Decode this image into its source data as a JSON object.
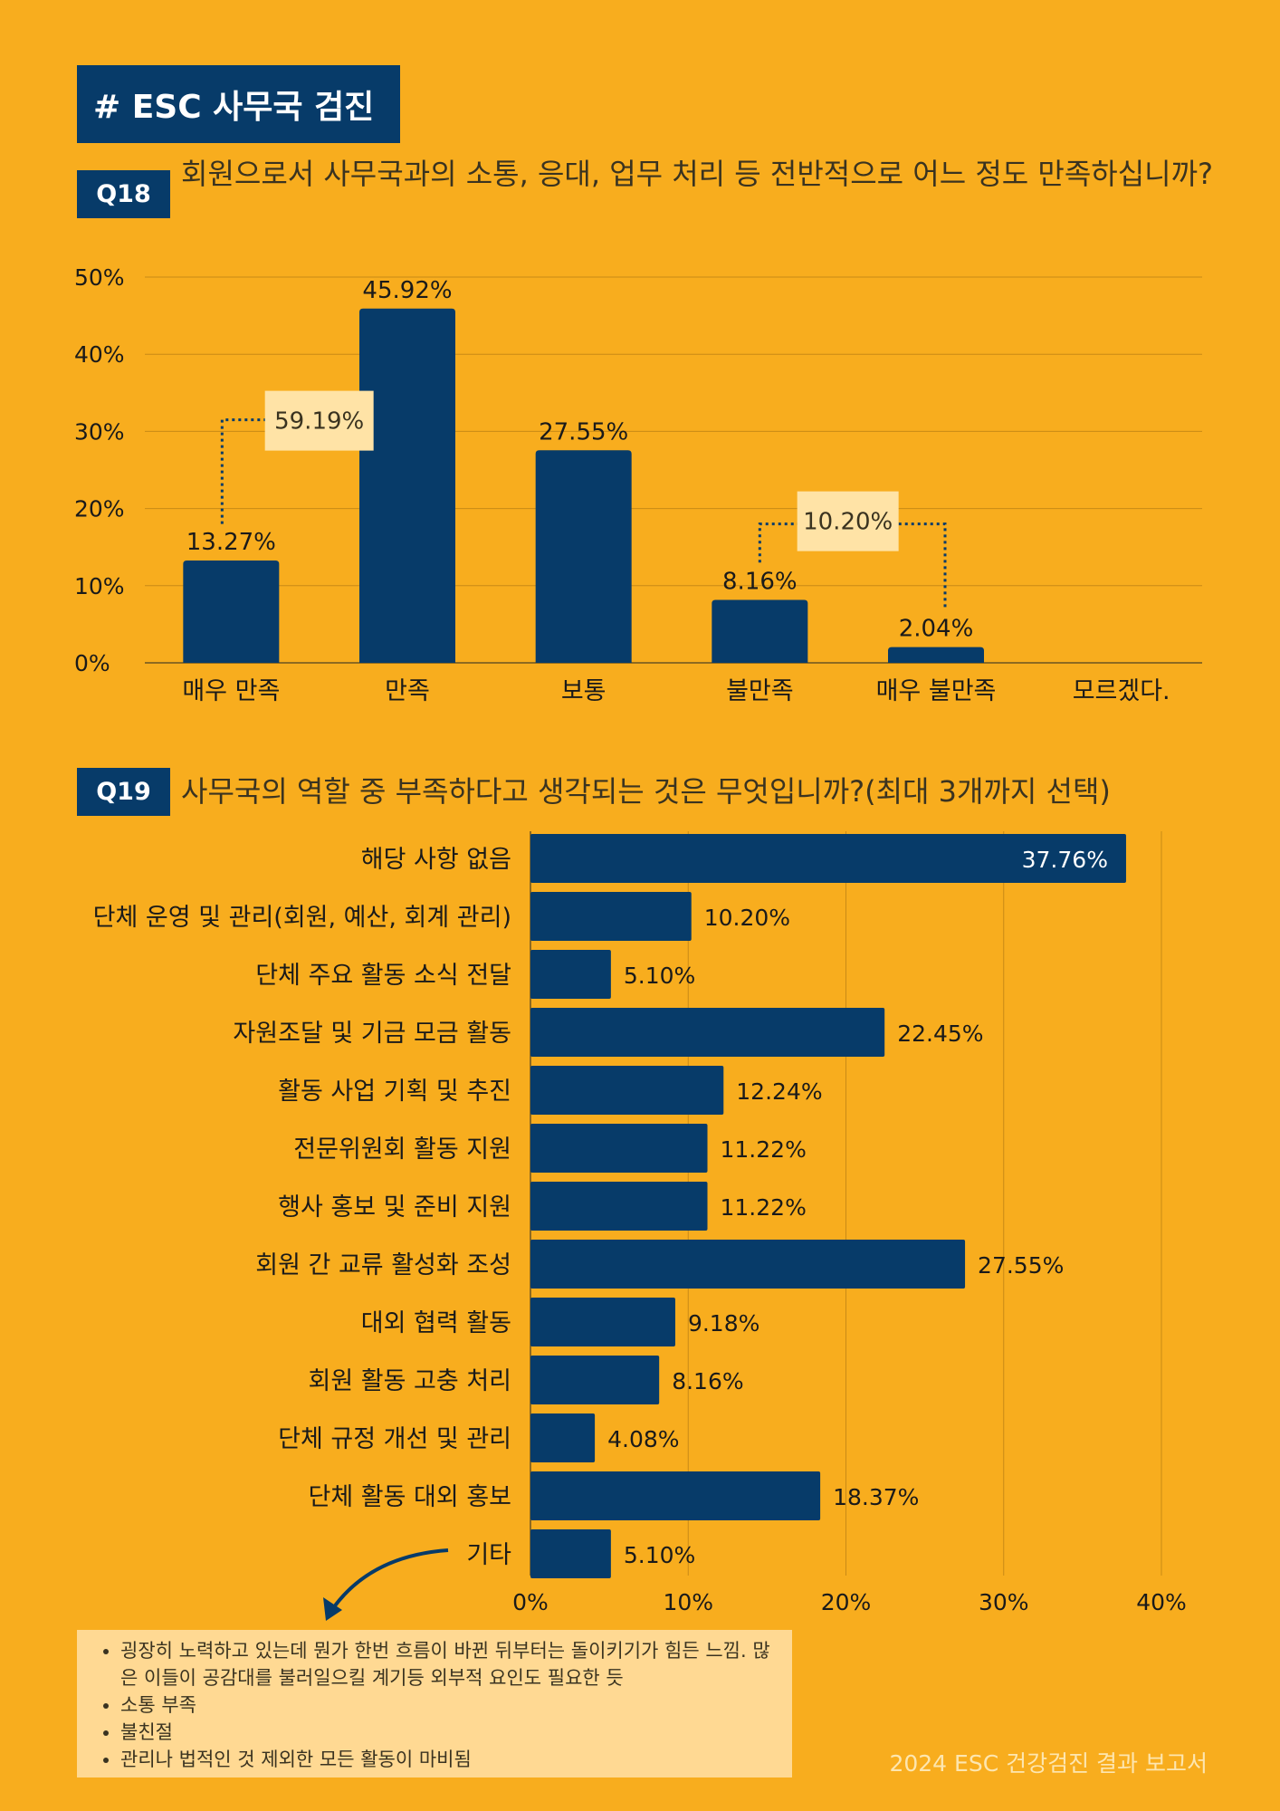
{
  "section_title": "# ESC 사무국 검진",
  "q18": {
    "badge": "Q18",
    "question": "회원으로서 사무국과의 소통, 응대, 업무 처리 등 전반적으로 어느 정도 만족하십니까?"
  },
  "q19": {
    "badge": "Q19",
    "question": "사무국의 역할 중 부족하다고 생각되는 것은 무엇입니까?(최대 3개까지 선택)"
  },
  "chart_data": [
    {
      "type": "bar",
      "categories": [
        "매우 만족",
        "만족",
        "보통",
        "불만족",
        "매우 불만족",
        "모르겠다."
      ],
      "values": [
        13.27,
        45.92,
        27.55,
        8.16,
        2.04,
        0
      ],
      "labels": [
        "13.27%",
        "45.92%",
        "27.55%",
        "8.16%",
        "2.04%",
        ""
      ],
      "ylim": [
        0,
        50
      ],
      "yticks": [
        "0%",
        "10%",
        "20%",
        "30%",
        "40%",
        "50%"
      ],
      "grid": true,
      "annotations": [
        {
          "text": "59.19%",
          "value": 59.19,
          "spans": [
            "매우 만족",
            "만족"
          ]
        },
        {
          "text": "10.20%",
          "value": 10.2,
          "spans": [
            "불만족",
            "매우 불만족"
          ]
        }
      ]
    },
    {
      "type": "bar",
      "orientation": "horizontal",
      "categories": [
        "해당 사항 없음",
        "단체 운영 및 관리(회원, 예산, 회계 관리)",
        "단체 주요 활동 소식 전달",
        "자원조달 및 기금 모금 활동",
        "활동 사업 기획 및 추진",
        "전문위원회 활동 지원",
        "행사 홍보 및 준비 지원",
        "회원 간 교류 활성화 조성",
        "대외 협력 활동",
        "회원 활동 고충 처리",
        "단체 규정 개선 및 관리",
        "단체 활동 대외 홍보",
        "기타"
      ],
      "values": [
        37.76,
        10.2,
        5.1,
        22.45,
        12.24,
        11.22,
        11.22,
        27.55,
        9.18,
        8.16,
        4.08,
        18.37,
        5.1
      ],
      "labels": [
        "37.76%",
        "10.20%",
        "5.10%",
        "22.45%",
        "12.24%",
        "11.22%",
        "11.22%",
        "27.55%",
        "9.18%",
        "8.16%",
        "4.08%",
        "18.37%",
        "5.10%"
      ],
      "xlim": [
        0,
        40
      ],
      "xticks": [
        "0%",
        "10%",
        "20%",
        "30%",
        "40%"
      ],
      "grid": true
    }
  ],
  "comments": [
    "굉장히 노력하고 있는데 뭔가 한번 흐름이 바뀐 뒤부터는 돌이키기가 힘든 느낌. 많은 이들이 공감대를 불러일으킬 계기등 외부적 요인도 필요한 듯",
    "소통 부족",
    "불친절",
    "관리나 법적인 것 제외한 모든 활동이 마비됨"
  ],
  "footer": "2024 ESC 건강검진 결과 보고서",
  "colors": {
    "background": "#F8AD1E",
    "bar": "#073B69",
    "callout": "#FFE3A6",
    "comment_box": "#FFD993"
  }
}
